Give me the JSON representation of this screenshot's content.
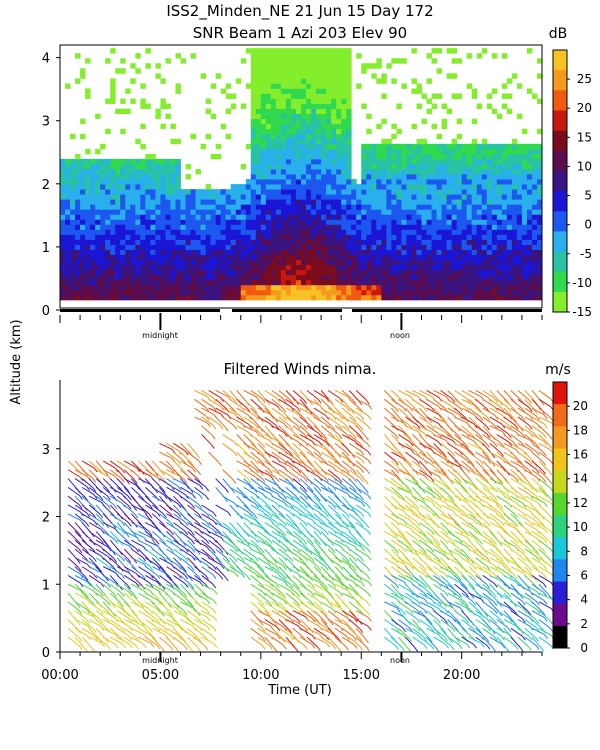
{
  "chart_data": [
    {
      "type": "heatmap",
      "title": "ISS2_Minden_NE  21 Jun 15 Day 172",
      "subtitle": "SNR Beam 1 Azi 203 Elev 90",
      "ylabel": "Altitude (km)",
      "yticks": [
        0,
        1,
        2,
        3,
        4
      ],
      "ylim": [
        0,
        4.2
      ],
      "xlim": [
        0,
        24
      ],
      "time_markers": [
        "midnight",
        "noon"
      ],
      "colorbar": {
        "unit": "dB",
        "ticks": [
          25,
          20,
          15,
          10,
          5,
          0,
          -5,
          -10,
          -15
        ],
        "range": [
          -15,
          30
        ],
        "colors": [
          "#84ee2c",
          "#31d94f",
          "#27c3a4",
          "#29b0ec",
          "#1c58f0",
          "#1b16d6",
          "#3a1480",
          "#5c0d4e",
          "#7a0c1e",
          "#c8180e",
          "#f25a10",
          "#f69a1e",
          "#f7c222"
        ]
      }
    },
    {
      "type": "scatter",
      "title": "Filtered Winds nima.",
      "ylabel": "Altitude (km)",
      "xlabel": "Time (UT)",
      "xticks": [
        "00:00",
        "05:00",
        "10:00",
        "15:00",
        "20:00"
      ],
      "xlim": [
        0,
        24
      ],
      "yticks": [
        0,
        1,
        2,
        3
      ],
      "ylim": [
        0,
        4
      ],
      "time_markers": [
        "midnight",
        "noon"
      ],
      "colorbar": {
        "unit": "m/s",
        "ticks": [
          20,
          18,
          16,
          14,
          12,
          10,
          8,
          6,
          4,
          2,
          0
        ],
        "range": [
          0,
          22
        ],
        "colors": [
          "#000000",
          "#6a0c8c",
          "#2a1ed6",
          "#1f86f0",
          "#18c8d8",
          "#2cd27c",
          "#56d72e",
          "#c6d81c",
          "#f0c41a",
          "#f59a20",
          "#f06a18",
          "#e0140c"
        ]
      }
    }
  ]
}
